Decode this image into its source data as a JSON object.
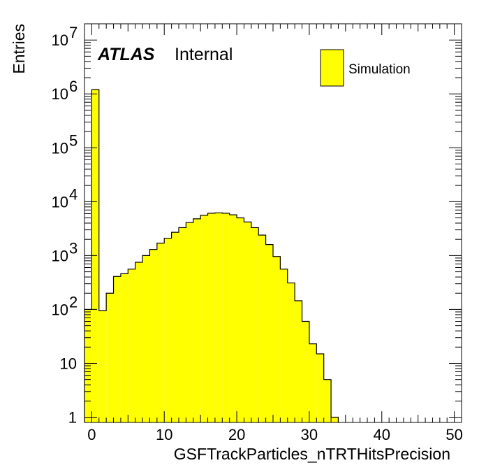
{
  "chart_data": {
    "type": "bar",
    "xlabel": "GSFTrackParticles_nTRTHitsPrecision",
    "ylabel": "Entries",
    "xlim": [
      -1,
      51
    ],
    "ylim": [
      0.8,
      20000000
    ],
    "yscale": "log",
    "grid": false,
    "legend_position": "top-right",
    "bin_width": 1,
    "fill_color": "#ffff00",
    "line_color": "#000000",
    "x_ticks": [
      "0",
      "10",
      "20",
      "30",
      "40",
      "50"
    ],
    "y_ticks": [
      {
        "value": 1,
        "base": "1",
        "exp": ""
      },
      {
        "value": 10,
        "base": "10",
        "exp": ""
      },
      {
        "value": 100,
        "base": "10",
        "exp": "2"
      },
      {
        "value": 1000,
        "base": "10",
        "exp": "3"
      },
      {
        "value": 10000,
        "base": "10",
        "exp": "4"
      },
      {
        "value": 100000,
        "base": "10",
        "exp": "5"
      },
      {
        "value": 1000000,
        "base": "10",
        "exp": "6"
      },
      {
        "value": 10000000,
        "base": "10",
        "exp": "7"
      }
    ],
    "series": [
      {
        "name": "Simulation",
        "bin_low_edges": [
          -1,
          0,
          1,
          2,
          3,
          4,
          5,
          6,
          7,
          8,
          9,
          10,
          11,
          12,
          13,
          14,
          15,
          16,
          17,
          18,
          19,
          20,
          21,
          22,
          23,
          24,
          25,
          26,
          27,
          28,
          29,
          30,
          31,
          32,
          33
        ],
        "values": [
          100,
          1200000,
          95,
          200,
          410,
          460,
          560,
          750,
          1000,
          1300,
          1700,
          2100,
          2700,
          3300,
          4100,
          4800,
          5600,
          6100,
          6200,
          6100,
          5700,
          5000,
          4200,
          3300,
          2400,
          1600,
          960,
          560,
          310,
          145,
          60,
          23,
          15,
          5,
          1
        ]
      }
    ]
  },
  "labels": {
    "atlas": "ATLAS",
    "internal": "Internal"
  },
  "legend": {
    "entries": [
      {
        "label": "Simulation"
      }
    ]
  }
}
